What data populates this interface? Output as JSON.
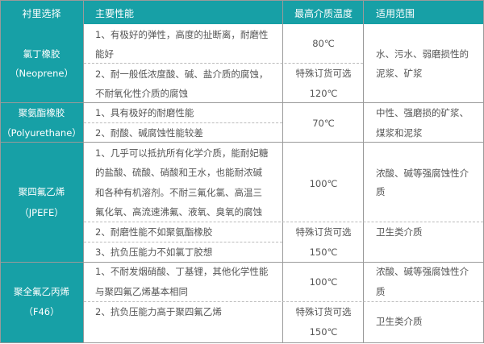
{
  "colors": {
    "header_bg": "#17a0a6",
    "text": "#555555",
    "border": "#9a9a9a"
  },
  "header": {
    "col1": "衬里选择",
    "col2": "主要性能",
    "col3": "最高介质温度",
    "col4": "适用范围"
  },
  "rows": [
    {
      "label": [
        "氯丁橡胶",
        "（Neoprene）"
      ],
      "features": [
        "1、有极好的弹性，高度的扯断离，耐磨性",
        "能好",
        "2、耐一般低浓度酸、碱、盐介质的腐蚀，",
        "不耐氧化性介质的腐蚀"
      ],
      "temps": [
        "80℃",
        "特殊订货可选",
        "120℃"
      ],
      "scope": [
        "水、污水、弱磨损性的",
        "泥浆、矿浆"
      ]
    },
    {
      "label": [
        "聚氨酯橡胶",
        "（Polyurethane）"
      ],
      "features": [
        "1、具有极好的耐磨性能",
        "2、耐酸、碱腐蚀性能较差"
      ],
      "temps": [
        "70℃"
      ],
      "scope": [
        "中性、强磨损的矿浆、",
        "煤浆和泥浆"
      ]
    },
    {
      "label": [
        "聚四氟乙烯",
        "（JPEFE）"
      ],
      "features": [
        "1、几乎可以抵抗所有化学介质，能耐妃糖",
        "的盐酸、硫酸、硝酸和王水，也能耐浓碱",
        "和各种有机溶剂。不耐三氟化氯、高温三",
        "氟化氧、高流速沸氟、液氧、臭氧的腐蚀",
        "2、耐磨性能不如聚氨酯橡胶",
        "3、抗负压能力不如氯丁胶想"
      ],
      "temps": [
        "100℃",
        "特殊订货可选",
        "150℃"
      ],
      "scope": [
        "浓酸、碱等强腐蚀性介",
        "质",
        "卫生类介质"
      ]
    },
    {
      "label": [
        "聚全氟乙丙烯",
        "（F46）"
      ],
      "features": [
        "1、不耐发烟硝酸、丁基锂，其他化学性能",
        "与聚四氟乙烯基本相同",
        "2、抗负压能力高于聚四氟乙烯"
      ],
      "temps": [
        "100℃",
        "特殊订货可选",
        "150℃"
      ],
      "scope": [
        "浓酸、碱等强腐蚀性介",
        "质",
        "卫生类介质"
      ]
    }
  ]
}
